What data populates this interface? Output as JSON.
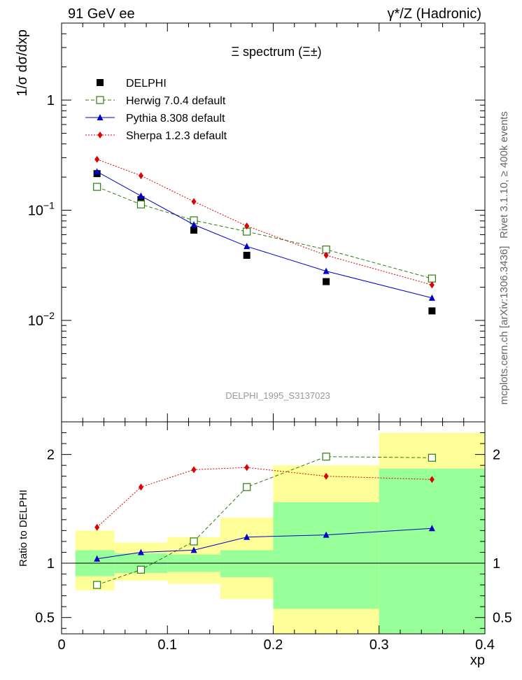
{
  "header": {
    "left": "91 GeV ee",
    "right": "γ*/Z (Hadronic)"
  },
  "side_labels": {
    "rivet": "Rivet 3.1.10, ≥ 400k events",
    "mcplots": "mcplots.cern.ch [arXiv:1306.3436]"
  },
  "chart_data": [
    {
      "type": "scatter",
      "title": "Ξ spectrum (Ξ±)",
      "analysis_label": "DELPHI_1995_S3137023",
      "xlabel": "xp",
      "ylabel": "1/σ dσ/dxp",
      "yscale": "log",
      "xlim": [
        0,
        0.4
      ],
      "ylim": [
        0.0012,
        5
      ],
      "y_tick_labels": [
        "10^-2",
        "10^-1",
        "1"
      ],
      "legend_position": "top-left",
      "x": [
        0.0335,
        0.075,
        0.125,
        0.175,
        0.25,
        0.35
      ],
      "series": [
        {
          "name": "DELPHI",
          "marker": "filled-square",
          "color": "#000000",
          "line": "none",
          "values": [
            0.215,
            0.125,
            0.066,
            0.039,
            0.0225,
            0.0122
          ]
        },
        {
          "name": "Herwig 7.0.4 default",
          "marker": "open-square",
          "color": "#2e7d0f",
          "line": "dashed",
          "values": [
            0.163,
            0.113,
            0.081,
            0.064,
            0.044,
            0.024
          ]
        },
        {
          "name": "Pythia 8.308 default",
          "marker": "triangle",
          "color": "#0000cc",
          "line": "solid",
          "values": [
            0.224,
            0.135,
            0.074,
            0.047,
            0.028,
            0.016
          ]
        },
        {
          "name": "Sherpa 1.2.3 default",
          "marker": "diamond",
          "color": "#e00000",
          "line": "dotted",
          "values": [
            0.29,
            0.206,
            0.12,
            0.072,
            0.039,
            0.021
          ]
        }
      ]
    },
    {
      "type": "scatter",
      "title": "",
      "xlabel": "xp",
      "ylabel": "Ratio to DELPHI",
      "xlim": [
        0,
        0.4
      ],
      "ylim": [
        0.35,
        2.3
      ],
      "x_ticks": [
        0,
        0.1,
        0.2,
        0.3,
        0.4
      ],
      "x_tick_labels": [
        "0",
        "0.1",
        "0.2",
        "0.3",
        "0.4"
      ],
      "y_ticks": [
        0.5,
        1,
        2
      ],
      "y_tick_labels": [
        "0.5",
        "1",
        "2"
      ],
      "reference_line": 1,
      "uncertainty_bands": [
        {
          "x0": 0.013,
          "x1": 0.05,
          "inner": [
            0.88,
            1.12
          ],
          "outer": [
            0.75,
            1.3
          ]
        },
        {
          "x0": 0.05,
          "x1": 0.1,
          "inner": [
            0.91,
            1.09
          ],
          "outer": [
            0.84,
            1.19
          ]
        },
        {
          "x0": 0.1,
          "x1": 0.15,
          "inner": [
            0.92,
            1.08
          ],
          "outer": [
            0.81,
            1.24
          ]
        },
        {
          "x0": 0.15,
          "x1": 0.2,
          "inner": [
            0.87,
            1.12
          ],
          "outer": [
            0.67,
            1.42
          ]
        },
        {
          "x0": 0.2,
          "x1": 0.3,
          "inner": [
            0.58,
            1.56
          ],
          "outer": [
            0.35,
            1.9
          ]
        },
        {
          "x0": 0.3,
          "x1": 0.4,
          "inner": [
            0.35,
            1.87
          ],
          "outer": [
            0.35,
            2.2
          ]
        }
      ],
      "x": [
        0.0335,
        0.075,
        0.125,
        0.175,
        0.25,
        0.35
      ],
      "series": [
        {
          "name": "Herwig 7.0.4 default",
          "marker": "open-square",
          "color": "#2e7d0f",
          "line": "dashed",
          "values": [
            0.8,
            0.94,
            1.2,
            1.7,
            1.98,
            1.97
          ]
        },
        {
          "name": "Pythia 8.308 default",
          "marker": "triangle",
          "color": "#0000cc",
          "line": "solid",
          "values": [
            1.04,
            1.1,
            1.12,
            1.24,
            1.26,
            1.32
          ]
        },
        {
          "name": "Sherpa 1.2.3 default",
          "marker": "diamond",
          "color": "#e00000",
          "line": "dotted",
          "values": [
            1.33,
            1.7,
            1.86,
            1.88,
            1.8,
            1.77
          ]
        }
      ]
    }
  ]
}
